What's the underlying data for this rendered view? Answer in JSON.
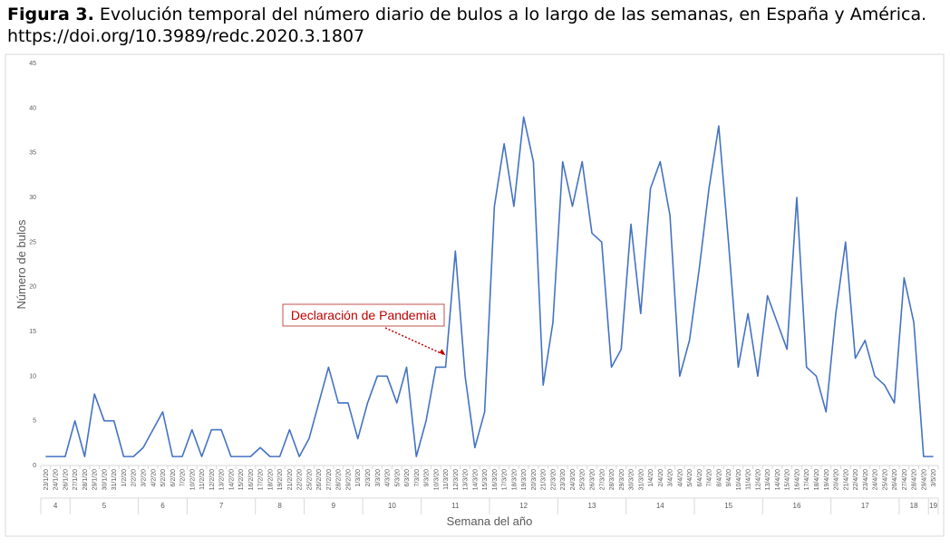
{
  "chart_data": {
    "type": "line",
    "title_label": "Figura 3.",
    "title": "Evolución temporal del número diario de bulos a lo largo de las semanas, en España y América. https://doi.org/10.3989/redc.2020.3.1807",
    "y_label": "Número de bulos",
    "x_label": "Semana del año",
    "annotation": "Declaración de Pandemia",
    "annotation_at": "11/3/20",
    "color": "#4472c4",
    "grid": false,
    "ylim": [
      0,
      45
    ],
    "yticks": [
      0,
      5,
      10,
      15,
      20,
      25,
      30,
      35,
      40,
      45
    ],
    "categories": [
      "23/1/20",
      "24/1/20",
      "26/1/20",
      "27/1/20",
      "28/1/20",
      "29/1/20",
      "30/1/20",
      "31/1/20",
      "1/2/20",
      "2/2/20",
      "3/2/20",
      "4/2/20",
      "5/2/20",
      "6/2/20",
      "7/2/20",
      "10/2/20",
      "11/2/20",
      "12/2/20",
      "13/2/20",
      "14/2/20",
      "15/2/20",
      "16/2/20",
      "17/2/20",
      "18/2/20",
      "19/2/20",
      "21/2/20",
      "22/2/20",
      "25/2/20",
      "26/2/20",
      "27/2/20",
      "28/2/20",
      "29/2/20",
      "1/3/20",
      "2/3/20",
      "3/3/20",
      "4/3/20",
      "5/3/20",
      "6/3/20",
      "7/3/20",
      "9/3/20",
      "10/3/20",
      "11/3/20",
      "12/3/20",
      "13/3/20",
      "14/3/20",
      "15/3/20",
      "16/3/20",
      "17/3/20",
      "18/3/20",
      "19/3/20",
      "20/3/20",
      "21/3/20",
      "22/3/20",
      "23/3/20",
      "24/3/20",
      "25/3/20",
      "26/3/20",
      "27/3/20",
      "28/3/20",
      "29/3/20",
      "30/3/20",
      "31/3/20",
      "1/4/20",
      "2/4/20",
      "3/4/20",
      "4/4/20",
      "5/4/20",
      "6/4/20",
      "7/4/20",
      "8/4/20",
      "9/4/20",
      "10/4/20",
      "11/4/20",
      "12/4/20",
      "13/4/20",
      "14/4/20",
      "15/4/20",
      "16/4/20",
      "17/4/20",
      "18/4/20",
      "19/4/20",
      "20/4/20",
      "21/4/20",
      "22/4/20",
      "23/4/20",
      "24/4/20",
      "25/4/20",
      "26/4/20",
      "27/4/20",
      "28/4/20",
      "29/4/20",
      "3/5/20"
    ],
    "values": [
      1,
      1,
      1,
      5,
      1,
      8,
      5,
      5,
      1,
      1,
      2,
      4,
      6,
      1,
      1,
      4,
      1,
      4,
      4,
      1,
      1,
      1,
      2,
      1,
      1,
      4,
      1,
      3,
      7,
      11,
      7,
      7,
      3,
      7,
      10,
      10,
      7,
      11,
      1,
      5,
      11,
      11,
      24,
      10,
      2,
      6,
      29,
      36,
      29,
      39,
      34,
      9,
      16,
      34,
      29,
      34,
      26,
      25,
      11,
      13,
      27,
      17,
      31,
      34,
      28,
      10,
      14,
      22,
      31,
      38,
      25,
      11,
      17,
      10,
      19,
      16,
      13,
      30,
      11,
      10,
      6,
      17,
      25,
      12,
      14,
      10,
      9,
      7,
      21,
      16,
      1,
      1
    ],
    "weeks": [
      {
        "label": "4",
        "from": "23/1/20",
        "to": "26/1/20"
      },
      {
        "label": "5",
        "from": "27/1/20",
        "to": "2/2/20"
      },
      {
        "label": "6",
        "from": "3/2/20",
        "to": "7/2/20"
      },
      {
        "label": "7",
        "from": "10/2/20",
        "to": "16/2/20"
      },
      {
        "label": "8",
        "from": "17/2/20",
        "to": "22/2/20"
      },
      {
        "label": "9",
        "from": "25/2/20",
        "to": "1/3/20"
      },
      {
        "label": "10",
        "from": "2/3/20",
        "to": "7/3/20"
      },
      {
        "label": "11",
        "from": "9/3/20",
        "to": "15/3/20"
      },
      {
        "label": "12",
        "from": "16/3/20",
        "to": "22/3/20"
      },
      {
        "label": "13",
        "from": "23/3/20",
        "to": "29/3/20"
      },
      {
        "label": "14",
        "from": "30/3/20",
        "to": "5/4/20"
      },
      {
        "label": "15",
        "from": "6/4/20",
        "to": "12/4/20"
      },
      {
        "label": "16",
        "from": "13/4/20",
        "to": "19/4/20"
      },
      {
        "label": "17",
        "from": "20/4/20",
        "to": "26/4/20"
      },
      {
        "label": "18",
        "from": "27/4/20",
        "to": "29/4/20"
      },
      {
        "label": "19",
        "from": "3/5/20",
        "to": "3/5/20"
      }
    ]
  }
}
